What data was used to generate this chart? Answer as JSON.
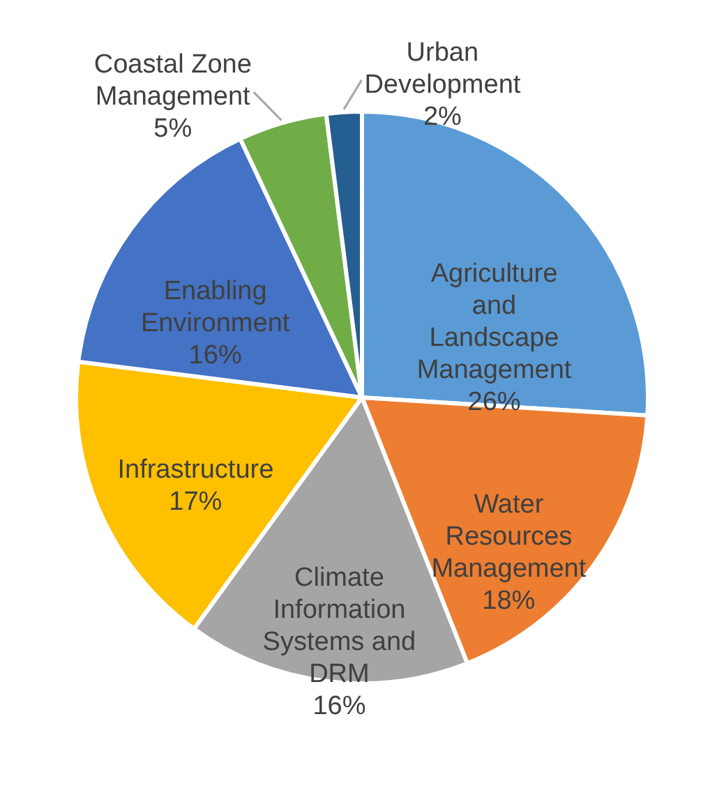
{
  "chart_data": {
    "type": "pie",
    "categories": [
      "Agriculture and Landscape Management",
      "Water Resources Management",
      "Climate Information Systems and DRM",
      "Infrastructure",
      "Enabling Environment",
      "Coastal Zone Management",
      "Urban Development"
    ],
    "values": [
      26,
      18,
      16,
      17,
      16,
      5,
      2
    ],
    "value_labels": [
      "26%",
      "18%",
      "16%",
      "17%",
      "16%",
      "5%",
      "2%"
    ],
    "colors": [
      "#5b9bd5",
      "#ed7d31",
      "#a5a5a5",
      "#ffc000",
      "#4472c4",
      "#70ad47",
      "#255e91"
    ]
  }
}
